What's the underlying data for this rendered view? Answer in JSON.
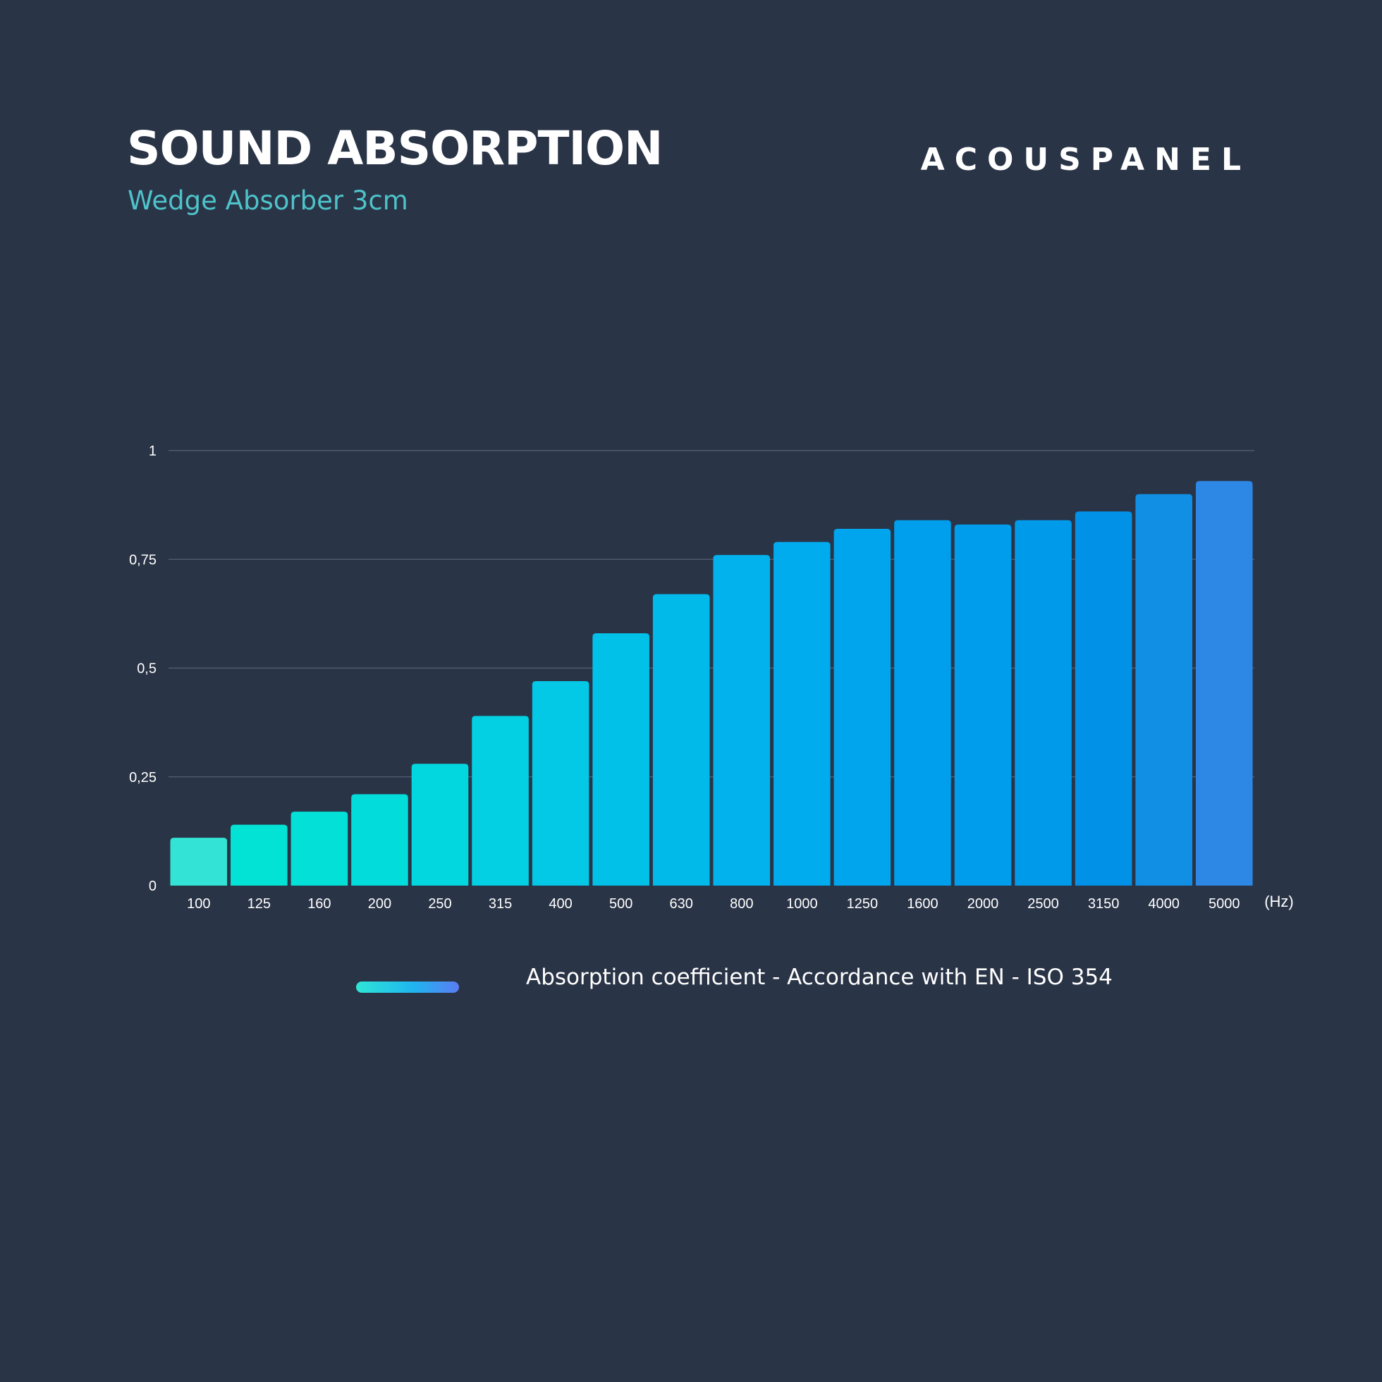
{
  "header": {
    "title": "SOUND ABSORPTION",
    "subtitle": "Wedge Absorber 3cm",
    "brand": "ACOUSPANEL"
  },
  "legend": {
    "label": "Absorption coefficient - Accordance with EN - ISO 354"
  },
  "colors": {
    "background": "#2a3447",
    "gridline": "#566074",
    "bar_start": "#2ee6d6",
    "bar_end": "#2f86e6",
    "subtitle": "#4ec3c9"
  },
  "chart_data": {
    "type": "bar",
    "categories": [
      "100",
      "125",
      "160",
      "200",
      "250",
      "315",
      "400",
      "500",
      "630",
      "800",
      "1000",
      "1250",
      "1600",
      "2000",
      "2500",
      "3150",
      "4000",
      "5000"
    ],
    "values": [
      0.11,
      0.14,
      0.17,
      0.21,
      0.28,
      0.39,
      0.47,
      0.58,
      0.67,
      0.76,
      0.79,
      0.82,
      0.84,
      0.83,
      0.84,
      0.86,
      0.9,
      0.93
    ],
    "bar_colors": [
      "#33e3d6",
      "#02e3d6",
      "#02e0d8",
      "#02dcdb",
      "#02d7e0",
      "#03d0e3",
      "#03c8e6",
      "#02c1e8",
      "#02baea",
      "#01b2ed",
      "#00abee",
      "#01a5ee",
      "#009fed",
      "#009dec",
      "#009aeb",
      "#0192e8",
      "#118fe5",
      "#2d88e5"
    ],
    "xlabel": "",
    "x_unit": "(Hz)",
    "ylabel": "",
    "ylim": [
      0,
      1
    ],
    "yticks": [
      0,
      0.25,
      0.5,
      0.75,
      1
    ],
    "ytick_labels": [
      "0",
      "0,25",
      "0,5",
      "0,75",
      "1"
    ],
    "grid": true,
    "legend_position": "bottom"
  }
}
